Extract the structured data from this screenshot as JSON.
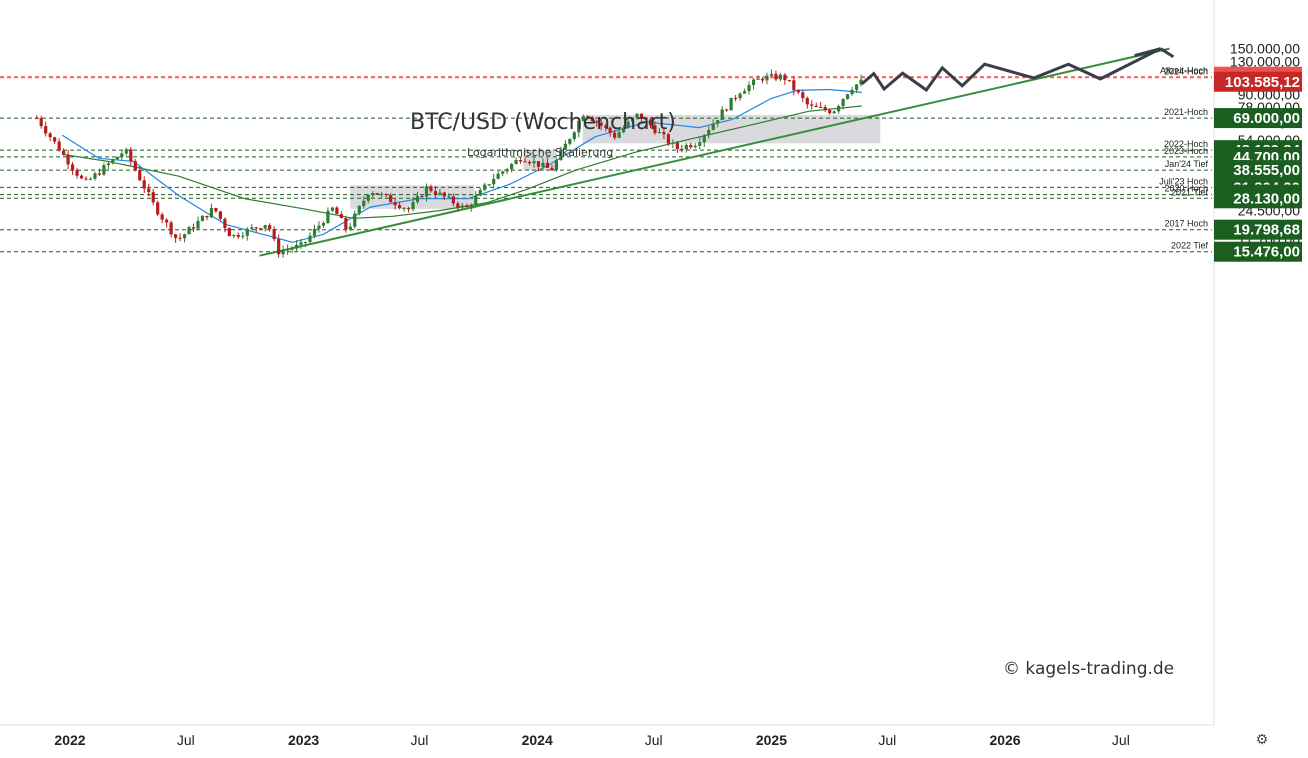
{
  "title": "BTC/USD (Wochenchart)",
  "subtitle": "Logarithmische Skalierung",
  "copyright": "© kagels-trading.de",
  "settings_icon": "gear-icon",
  "colors": {
    "up": "#2e7d32",
    "down": "#b71c1c",
    "ma_fast": "#1e88e5",
    "ma_slow": "#2e7d32",
    "trendline": "#388e3c",
    "zone": "#d3d3d8",
    "projection": "#3a3d4a",
    "label_green": "#1b5e20",
    "label_red_dark": "#c62828",
    "label_red_light": "#ef5350"
  },
  "chart_data": {
    "type": "candlestick",
    "x_axis_ticks": [
      "2022",
      "Jul",
      "2023",
      "Jul",
      "2024",
      "Jul",
      "2025",
      "Jul",
      "2026",
      "Jul"
    ],
    "y_axis_ticks": [
      "150.000,00",
      "130.000,00",
      "90.000,00",
      "78.000,00",
      "66.000,00",
      "54.000,00",
      "40.500,00",
      "34.500,00",
      "24.500,00",
      "20.500,00",
      "17.700,00"
    ],
    "scale": "log",
    "ylim": [
      14800,
      160000
    ],
    "levels": [
      {
        "label": "Allzeit-Hoch",
        "value": 109588,
        "price": "109.588,00",
        "style": "red-dash"
      },
      {
        "label": "2024-Hoch",
        "value": 108353,
        "price": "108.353,00",
        "style": "red-dash"
      },
      {
        "label": "",
        "value": 103585.12,
        "price": "103.585,12",
        "style": "current"
      },
      {
        "label": "2021-Hoch",
        "value": 69000,
        "price": "69.000,00",
        "style": "green-dash"
      },
      {
        "label": "2022-Hoch",
        "value": 48189.84,
        "price": "48.189,84",
        "style": "green-dash"
      },
      {
        "label": "2023-Hoch",
        "value": 44700,
        "price": "44.700,00",
        "style": "green-dash"
      },
      {
        "label": "Jan'24 Tief",
        "value": 38555,
        "price": "38.555,00",
        "style": "green-dash"
      },
      {
        "label": "Juli'23 Hoch",
        "value": 31804.2,
        "price": "31.804,20",
        "style": "green-dash"
      },
      {
        "label": "2020 Hoch",
        "value": 29300,
        "price": "29.300,00",
        "style": "green-dash"
      },
      {
        "label": "2021 Tief",
        "value": 28130,
        "price": "28.130,00",
        "style": "green-dash"
      },
      {
        "label": "2017 Hoch",
        "value": 19798.68,
        "price": "19.798,68",
        "style": "green-dash"
      },
      {
        "label": "2022 Tief",
        "value": 15476,
        "price": "15.476,00",
        "style": "green-dash"
      }
    ],
    "price_path": [
      [
        "2021-11-10",
        69000
      ],
      [
        "2022-01-24",
        33000
      ],
      [
        "2022-03-28",
        48189.84
      ],
      [
        "2022-05-12",
        26000
      ],
      [
        "2022-06-18",
        17600
      ],
      [
        "2022-08-14",
        25200
      ],
      [
        "2022-09-10",
        18300
      ],
      [
        "2022-11-06",
        21400
      ],
      [
        "2022-11-21",
        15476
      ],
      [
        "2022-12-30",
        16600
      ],
      [
        "2023-02-16",
        25200
      ],
      [
        "2023-03-10",
        19600
      ],
      [
        "2023-04-14",
        31000
      ],
      [
        "2023-06-15",
        24800
      ],
      [
        "2023-07-13",
        31804.2
      ],
      [
        "2023-09-11",
        24900
      ],
      [
        "2023-10-23",
        35000
      ],
      [
        "2023-12-08",
        44700
      ],
      [
        "2024-01-23",
        38555
      ],
      [
        "2024-03-14",
        73800
      ],
      [
        "2024-05-01",
        56500
      ],
      [
        "2024-06-07",
        72000
      ],
      [
        "2024-08-05",
        49000
      ],
      [
        "2024-09-06",
        52500
      ],
      [
        "2024-11-13",
        93500
      ],
      [
        "2024-12-17",
        108353
      ],
      [
        "2025-01-20",
        109588
      ],
      [
        "2025-03-01",
        78000
      ],
      [
        "2025-04-07",
        74500
      ],
      [
        "2025-05-05",
        97000
      ],
      [
        "2025-05-22",
        103585.12
      ]
    ],
    "ma_fast": [
      [
        "2021-12-20",
        57000
      ],
      [
        "2022-02-15",
        44000
      ],
      [
        "2022-04-10",
        42500
      ],
      [
        "2022-06-20",
        29000
      ],
      [
        "2022-09-01",
        21000
      ],
      [
        "2022-12-15",
        17200
      ],
      [
        "2023-02-01",
        18800
      ],
      [
        "2023-04-15",
        25500
      ],
      [
        "2023-07-01",
        28000
      ],
      [
        "2023-09-15",
        28000
      ],
      [
        "2023-11-20",
        33000
      ],
      [
        "2024-01-20",
        41000
      ],
      [
        "2024-04-01",
        56000
      ],
      [
        "2024-06-20",
        66000
      ],
      [
        "2024-09-10",
        62000
      ],
      [
        "2024-11-01",
        68000
      ],
      [
        "2025-01-01",
        86000
      ],
      [
        "2025-02-10",
        94000
      ],
      [
        "2025-04-01",
        95000
      ],
      [
        "2025-05-22",
        92000
      ]
    ],
    "ma_slow": [
      [
        "2021-12-20",
        46000
      ],
      [
        "2022-03-01",
        42500
      ],
      [
        "2022-06-20",
        36000
      ],
      [
        "2022-10-01",
        28000
      ],
      [
        "2023-01-01",
        25000
      ],
      [
        "2023-03-20",
        22500
      ],
      [
        "2023-05-20",
        23000
      ],
      [
        "2023-08-01",
        24500
      ],
      [
        "2023-10-15",
        26800
      ],
      [
        "2023-12-15",
        31000
      ],
      [
        "2024-03-01",
        38500
      ],
      [
        "2024-06-01",
        47000
      ],
      [
        "2024-09-01",
        55000
      ],
      [
        "2024-12-01",
        64000
      ],
      [
        "2025-03-01",
        74500
      ],
      [
        "2025-05-22",
        79000
      ]
    ],
    "trendline": [
      [
        "2022-10-24",
        14800
      ],
      [
        "2026-09-15",
        150000
      ]
    ],
    "zones": [
      {
        "from": "2023-03-15",
        "to": "2023-09-25",
        "low": 25000,
        "high": 32500
      },
      {
        "from": "2023-12-10",
        "to": "2024-01-30",
        "low": 38500,
        "high": 48200
      },
      {
        "from": "2024-03-12",
        "to": "2025-06-20",
        "low": 52000,
        "high": 71500
      }
    ],
    "projection": [
      [
        "2025-05-22",
        101000
      ],
      [
        "2025-06-10",
        113500
      ],
      [
        "2025-06-26",
        95500
      ],
      [
        "2025-07-25",
        114000
      ],
      [
        "2025-08-31",
        94500
      ],
      [
        "2025-09-25",
        121000
      ],
      [
        "2025-10-26",
        99000
      ],
      [
        "2025-11-30",
        126000
      ],
      [
        "2026-02-15",
        108000
      ],
      [
        "2026-04-10",
        126000
      ],
      [
        "2026-05-30",
        107000
      ],
      [
        "2026-09-01",
        150000
      ],
      [
        "2026-09-21",
        137000
      ]
    ]
  }
}
